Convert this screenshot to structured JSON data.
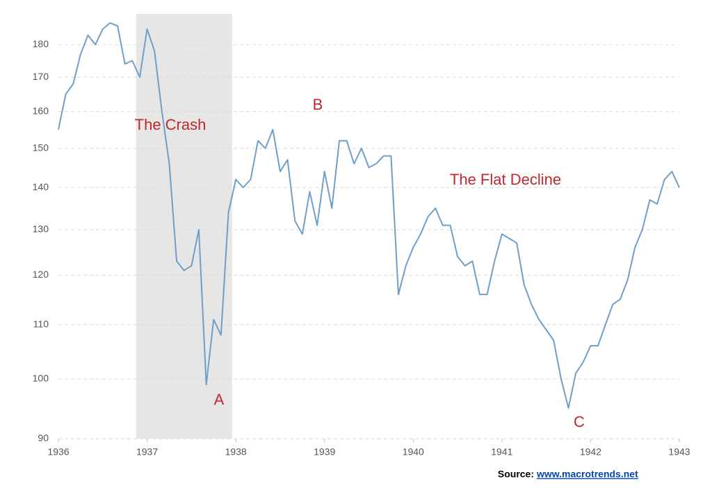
{
  "chart_data": {
    "type": "line",
    "log_scale": true,
    "grid": true,
    "color": "#6f9fc8",
    "highlight_color": "#e6e6e6",
    "annotation_color": "#c0282d",
    "highlight_x": [
      1936.875,
      1937.958
    ],
    "annotations": [
      "The Crash",
      "A",
      "B",
      "The Flat Decline",
      "C"
    ],
    "source_label": "Source:",
    "source_link": "www.macrotrends.net",
    "xlim": [
      1936,
      1943
    ],
    "xticks": [
      1936,
      1937,
      1938,
      1939,
      1940,
      1941,
      1942,
      1943
    ],
    "ylim": [
      90,
      190
    ],
    "yticks": [
      90,
      100,
      110,
      120,
      130,
      140,
      150,
      160,
      170,
      180
    ],
    "x": [
      1936,
      1936.083,
      1936.167,
      1936.25,
      1936.333,
      1936.417,
      1936.5,
      1936.583,
      1936.667,
      1936.75,
      1936.833,
      1936.917,
      1937,
      1937.083,
      1937.167,
      1937.25,
      1937.333,
      1937.417,
      1937.5,
      1937.583,
      1937.667,
      1937.75,
      1937.833,
      1937.917,
      1938,
      1938.083,
      1938.167,
      1938.25,
      1938.333,
      1938.417,
      1938.5,
      1938.583,
      1938.667,
      1938.75,
      1938.833,
      1938.917,
      1939,
      1939.083,
      1939.167,
      1939.25,
      1939.333,
      1939.417,
      1939.5,
      1939.583,
      1939.667,
      1939.75,
      1939.833,
      1939.917,
      1940,
      1940.083,
      1940.167,
      1940.25,
      1940.333,
      1940.417,
      1940.5,
      1940.583,
      1940.667,
      1940.75,
      1940.833,
      1940.917,
      1941,
      1941.083,
      1941.167,
      1941.25,
      1941.333,
      1941.417,
      1941.5,
      1941.583,
      1941.667,
      1941.75,
      1941.833,
      1941.917,
      1942,
      1942.083,
      1942.167,
      1942.25,
      1942.333,
      1942.417,
      1942.5,
      1942.583,
      1942.667,
      1942.75,
      1942.833,
      1942.917,
      1943
    ],
    "values": [
      155,
      165,
      168,
      177,
      183,
      180,
      185,
      187,
      186,
      174,
      175,
      170,
      185,
      178,
      160,
      146,
      123,
      121,
      122,
      130,
      99,
      111,
      108,
      134,
      142,
      140,
      142,
      152,
      150,
      155,
      144,
      147,
      132,
      129,
      139,
      131,
      144,
      135,
      152,
      152,
      146,
      150,
      145,
      146,
      148,
      148,
      116,
      122,
      126,
      129,
      133,
      135,
      131,
      131,
      124,
      122,
      123,
      116,
      116,
      123,
      129,
      128,
      127,
      118,
      114,
      111,
      109,
      107,
      100,
      95,
      101,
      103,
      106,
      106,
      110,
      114,
      115,
      119,
      126,
      130,
      137,
      136,
      142,
      144,
      140
    ]
  }
}
